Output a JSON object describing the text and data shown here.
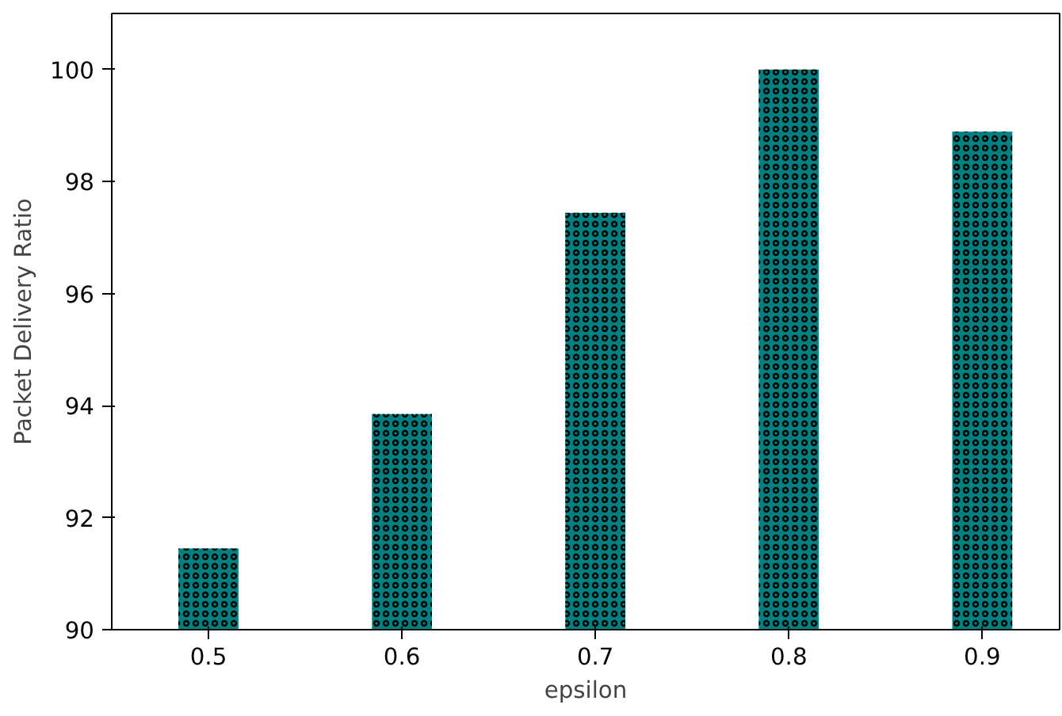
{
  "chart_data": {
    "type": "bar",
    "xlabel": "epsilon",
    "ylabel": "Packet Delivery Ratio",
    "x": [
      0.5,
      0.6,
      0.7,
      0.8,
      0.9
    ],
    "values": [
      91.45,
      93.85,
      97.44,
      100.0,
      98.89
    ],
    "color": "#008080",
    "xlim": [
      0.45,
      0.94
    ],
    "xticks": [
      0.5,
      0.6,
      0.7,
      0.8,
      0.9
    ],
    "ylim": [
      90,
      101
    ],
    "yticks": [
      90,
      92,
      94,
      96,
      98,
      100
    ],
    "grid": false
  }
}
